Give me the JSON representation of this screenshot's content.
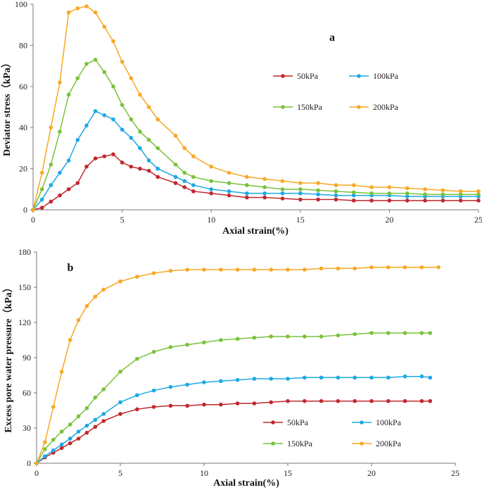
{
  "colors": {
    "s50": "#c0282d",
    "s100": "#1ca8e6",
    "s150": "#78c23a",
    "s200": "#f7a823"
  },
  "chart_data": [
    {
      "type": "line",
      "panel_label": "a",
      "title": "",
      "xlabel": "Axial strain(%)",
      "ylabel": "Deviator stress（kPa）",
      "xlim": [
        0,
        25
      ],
      "ylim": [
        0,
        100
      ],
      "xticks": [
        "0",
        "5",
        "10",
        "15",
        "20",
        "25"
      ],
      "yticks": [
        "0",
        "20",
        "40",
        "60",
        "80",
        "100"
      ],
      "legend_position": "upper-right",
      "series": [
        {
          "name": "50kPa",
          "color_key": "s50",
          "x": [
            0,
            0.5,
            1,
            1.5,
            2,
            2.5,
            3,
            3.5,
            4,
            4.5,
            5,
            5.5,
            6,
            6.5,
            7,
            8,
            8.5,
            9,
            10,
            11,
            12,
            13,
            14,
            15,
            16,
            17,
            18,
            19,
            20,
            21,
            22,
            23,
            24,
            25
          ],
          "y": [
            0,
            1,
            4,
            7,
            10,
            13,
            21,
            25,
            26,
            27,
            23,
            21,
            20,
            19,
            16,
            13,
            11,
            9,
            8,
            7,
            6,
            6,
            5.5,
            5,
            5,
            5,
            4.5,
            4.5,
            4.5,
            4.5,
            4.5,
            4.5,
            4.5,
            4.5
          ]
        },
        {
          "name": "100kPa",
          "color_key": "s100",
          "x": [
            0,
            0.5,
            1,
            1.5,
            2,
            2.5,
            3,
            3.5,
            4,
            4.5,
            5,
            5.5,
            6,
            6.5,
            7,
            8,
            8.5,
            9,
            10,
            11,
            12,
            13,
            14,
            15,
            16,
            17,
            18,
            19,
            20,
            21,
            22,
            23,
            24,
            25
          ],
          "y": [
            0,
            5,
            12,
            18,
            24,
            34,
            41,
            48,
            46,
            44,
            39,
            35,
            30,
            24,
            20,
            16,
            14,
            12,
            10,
            9,
            8,
            8,
            8,
            8,
            7.5,
            7,
            7,
            7,
            7,
            6.5,
            6.5,
            6.5,
            6.5,
            6.5
          ]
        },
        {
          "name": "150kPa",
          "color_key": "s150",
          "x": [
            0,
            0.5,
            1,
            1.5,
            2,
            2.5,
            3,
            3.5,
            4,
            4.5,
            5,
            5.5,
            6,
            6.5,
            7,
            8,
            8.5,
            9,
            10,
            11,
            12,
            13,
            14,
            15,
            16,
            17,
            18,
            19,
            20,
            21,
            22,
            23,
            24,
            25
          ],
          "y": [
            0,
            10,
            22,
            38,
            56,
            64,
            71,
            73,
            67,
            60,
            51,
            44,
            38,
            34,
            30,
            22,
            18,
            16,
            14,
            13,
            12,
            11,
            10,
            10,
            9.5,
            9,
            8.5,
            8,
            8,
            8,
            7.5,
            7.5,
            7.5,
            7.5
          ]
        },
        {
          "name": "200kPa",
          "color_key": "s200",
          "x": [
            0,
            0.5,
            1,
            1.5,
            2,
            2.5,
            3,
            3.5,
            4,
            4.5,
            5,
            5.5,
            6,
            6.5,
            7,
            8,
            8.5,
            9,
            10,
            11,
            12,
            13,
            14,
            15,
            16,
            17,
            18,
            19,
            20,
            21,
            22,
            23,
            24,
            25
          ],
          "y": [
            0,
            18,
            40,
            62,
            96,
            98,
            99,
            96,
            89,
            82,
            72,
            64,
            56,
            50,
            44,
            36,
            30,
            26,
            21,
            18,
            16,
            15,
            14,
            13,
            13,
            12,
            12,
            11,
            11,
            10.5,
            10,
            9.5,
            9,
            9
          ]
        }
      ]
    },
    {
      "type": "line",
      "panel_label": "b",
      "title": "",
      "xlabel": "Axial strain(%)",
      "ylabel": "Excess pore water pressure（kPa）",
      "xlim": [
        0,
        25
      ],
      "ylim": [
        0,
        180
      ],
      "xticks": [
        "0",
        "5",
        "10",
        "15",
        "20",
        "25"
      ],
      "yticks": [
        "0",
        "30",
        "60",
        "90",
        "120",
        "150",
        "180"
      ],
      "legend_position": "lower-right",
      "series": [
        {
          "name": "50kPa",
          "color_key": "s50",
          "x": [
            0,
            0.5,
            1,
            1.5,
            2,
            2.5,
            3,
            3.5,
            4,
            5,
            6,
            7,
            8,
            9,
            10,
            11,
            12,
            13,
            14,
            15,
            16,
            17,
            18,
            19,
            20,
            21,
            22,
            23,
            23.5
          ],
          "y": [
            0,
            5,
            9,
            13,
            17,
            21,
            26,
            31,
            36,
            42,
            46,
            48,
            49,
            49,
            50,
            50,
            51,
            51,
            52,
            53,
            53,
            53,
            53,
            53,
            53,
            53,
            53,
            53,
            53
          ]
        },
        {
          "name": "100kPa",
          "color_key": "s100",
          "x": [
            0,
            0.5,
            1,
            1.5,
            2,
            2.5,
            3,
            3.5,
            4,
            5,
            6,
            7,
            8,
            9,
            10,
            11,
            12,
            13,
            14,
            15,
            16,
            17,
            18,
            19,
            20,
            21,
            22,
            23,
            23.5
          ],
          "y": [
            0,
            6,
            11,
            16,
            21,
            27,
            32,
            37,
            42,
            52,
            58,
            62,
            65,
            67,
            69,
            70,
            71,
            72,
            72,
            72,
            73,
            73,
            73,
            73,
            73,
            73,
            74,
            74,
            73
          ]
        },
        {
          "name": "150kPa",
          "color_key": "s150",
          "x": [
            0,
            0.5,
            1,
            1.5,
            2,
            2.5,
            3,
            3.5,
            4,
            5,
            6,
            7,
            8,
            9,
            10,
            11,
            12,
            13,
            14,
            15,
            16,
            17,
            18,
            19,
            20,
            21,
            22,
            23,
            23.5
          ],
          "y": [
            0,
            12,
            20,
            27,
            33,
            40,
            47,
            56,
            63,
            78,
            89,
            95,
            99,
            101,
            103,
            105,
            106,
            107,
            108,
            108,
            108,
            108,
            109,
            110,
            111,
            111,
            111,
            111,
            111
          ]
        },
        {
          "name": "200kPa",
          "color_key": "s200",
          "x": [
            0,
            0.5,
            1,
            1.5,
            2,
            2.5,
            3,
            3.5,
            4,
            5,
            6,
            7,
            8,
            9,
            10,
            11,
            12,
            13,
            14,
            15,
            16,
            17,
            18,
            19,
            20,
            21,
            22,
            23,
            24
          ],
          "y": [
            0,
            18,
            48,
            78,
            105,
            122,
            134,
            142,
            148,
            155,
            159,
            162,
            164,
            165,
            165,
            165,
            165,
            165,
            165,
            165,
            165,
            166,
            166,
            166,
            167,
            167,
            167,
            167,
            167
          ]
        }
      ]
    }
  ]
}
